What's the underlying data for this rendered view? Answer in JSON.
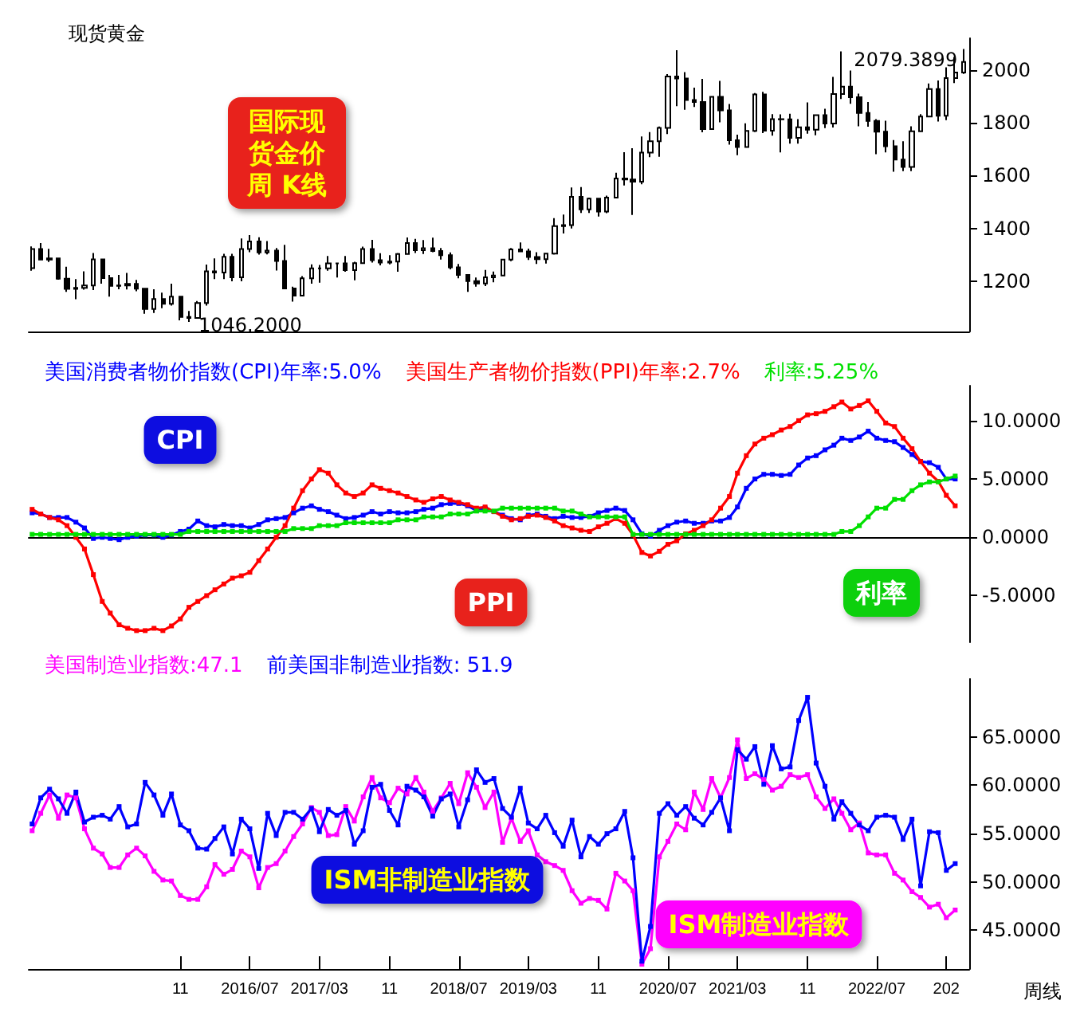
{
  "chart_data": [
    {
      "type": "candlestick",
      "title": "现货黄金",
      "color": "#000000",
      "xlim": [
        "2014-05-20",
        "2023-05-20"
      ],
      "ylim": [
        1010,
        2120
      ],
      "yticks": [
        1200,
        1400,
        1600,
        1800,
        2000
      ],
      "tick_labels": "y",
      "annotations": [
        "国际现货金价周 K线",
        {
          "text": "2079.3899",
          "x": "2023-05",
          "y": 2079.3899
        },
        {
          "text": "1046.2000",
          "x": "2015-12",
          "y": 1046.2
        }
      ],
      "x": [
        "2014-06",
        "2014-07",
        "2014-08",
        "2014-09",
        "2014-10",
        "2014-11",
        "2014-12",
        "2015-01",
        "2015-02",
        "2015-03",
        "2015-04",
        "2015-05",
        "2015-06",
        "2015-07",
        "2015-08",
        "2015-09",
        "2015-10",
        "2015-11",
        "2015-12",
        "2016-01",
        "2016-02",
        "2016-03",
        "2016-04",
        "2016-05",
        "2016-06",
        "2016-07",
        "2016-08",
        "2016-09",
        "2016-10",
        "2016-11",
        "2016-12",
        "2017-01",
        "2017-02",
        "2017-03",
        "2017-04",
        "2017-05",
        "2017-06",
        "2017-07",
        "2017-08",
        "2017-09",
        "2017-10",
        "2017-11",
        "2017-12",
        "2018-01",
        "2018-02",
        "2018-03",
        "2018-04",
        "2018-05",
        "2018-06",
        "2018-07",
        "2018-08",
        "2018-09",
        "2018-10",
        "2018-11",
        "2018-12",
        "2019-01",
        "2019-02",
        "2019-03",
        "2019-04",
        "2019-05",
        "2019-06",
        "2019-07",
        "2019-08",
        "2019-09",
        "2019-10",
        "2019-11",
        "2019-12",
        "2020-01",
        "2020-02",
        "2020-03",
        "2020-04",
        "2020-05",
        "2020-06",
        "2020-07",
        "2020-08",
        "2020-09",
        "2020-10",
        "2020-11",
        "2020-12",
        "2021-01",
        "2021-02",
        "2021-03",
        "2021-04",
        "2021-05",
        "2021-06",
        "2021-07",
        "2021-08",
        "2021-09",
        "2021-10",
        "2021-11",
        "2021-12",
        "2022-01",
        "2022-02",
        "2022-03",
        "2022-04",
        "2022-05",
        "2022-06",
        "2022-07",
        "2022-08",
        "2022-09",
        "2022-10",
        "2022-11",
        "2022-12",
        "2023-01",
        "2023-02",
        "2023-03",
        "2023-04",
        "2023-05"
      ],
      "ohlc": [
        [
          1250,
          1332,
          1240,
          1322
        ],
        [
          1322,
          1345,
          1282,
          1282
        ],
        [
          1282,
          1323,
          1273,
          1287
        ],
        [
          1287,
          1290,
          1206,
          1210
        ],
        [
          1210,
          1255,
          1160,
          1171
        ],
        [
          1171,
          1208,
          1132,
          1175
        ],
        [
          1175,
          1238,
          1168,
          1184
        ],
        [
          1184,
          1307,
          1167,
          1283
        ],
        [
          1283,
          1284,
          1191,
          1212
        ],
        [
          1212,
          1224,
          1142,
          1183
        ],
        [
          1183,
          1224,
          1170,
          1184
        ],
        [
          1184,
          1232,
          1169,
          1190
        ],
        [
          1190,
          1205,
          1162,
          1172
        ],
        [
          1172,
          1174,
          1077,
          1095
        ],
        [
          1095,
          1170,
          1080,
          1133
        ],
        [
          1133,
          1157,
          1098,
          1115
        ],
        [
          1115,
          1191,
          1108,
          1142
        ],
        [
          1142,
          1143,
          1052,
          1065
        ],
        [
          1065,
          1088,
          1046.2,
          1061
        ],
        [
          1061,
          1125,
          1061,
          1118
        ],
        [
          1118,
          1263,
          1108,
          1238
        ],
        [
          1238,
          1287,
          1208,
          1233
        ],
        [
          1233,
          1304,
          1208,
          1293
        ],
        [
          1293,
          1304,
          1200,
          1215
        ],
        [
          1215,
          1362,
          1200,
          1322
        ],
        [
          1322,
          1375,
          1310,
          1351
        ],
        [
          1351,
          1367,
          1301,
          1309
        ],
        [
          1309,
          1352,
          1302,
          1316
        ],
        [
          1316,
          1326,
          1241,
          1277
        ],
        [
          1277,
          1338,
          1171,
          1173
        ],
        [
          1173,
          1180,
          1123,
          1146
        ],
        [
          1146,
          1220,
          1146,
          1211
        ],
        [
          1211,
          1264,
          1191,
          1249
        ],
        [
          1249,
          1262,
          1195,
          1249
        ],
        [
          1249,
          1296,
          1240,
          1268
        ],
        [
          1268,
          1270,
          1214,
          1268
        ],
        [
          1268,
          1296,
          1236,
          1242
        ],
        [
          1242,
          1274,
          1204,
          1269
        ],
        [
          1269,
          1331,
          1267,
          1322
        ],
        [
          1322,
          1357,
          1271,
          1280
        ],
        [
          1280,
          1306,
          1260,
          1271
        ],
        [
          1271,
          1299,
          1264,
          1275
        ],
        [
          1275,
          1307,
          1236,
          1303
        ],
        [
          1303,
          1366,
          1302,
          1345
        ],
        [
          1345,
          1361,
          1307,
          1318
        ],
        [
          1318,
          1356,
          1303,
          1325
        ],
        [
          1325,
          1365,
          1310,
          1315
        ],
        [
          1315,
          1326,
          1282,
          1299
        ],
        [
          1299,
          1309,
          1245,
          1253
        ],
        [
          1253,
          1266,
          1211,
          1224
        ],
        [
          1224,
          1224,
          1160,
          1201
        ],
        [
          1201,
          1214,
          1180,
          1192
        ],
        [
          1192,
          1243,
          1182,
          1215
        ],
        [
          1215,
          1237,
          1196,
          1222
        ],
        [
          1222,
          1285,
          1221,
          1282
        ],
        [
          1282,
          1326,
          1276,
          1321
        ],
        [
          1321,
          1347,
          1311,
          1313
        ],
        [
          1313,
          1324,
          1281,
          1292
        ],
        [
          1292,
          1310,
          1266,
          1284
        ],
        [
          1284,
          1306,
          1267,
          1305
        ],
        [
          1305,
          1439,
          1301,
          1409
        ],
        [
          1409,
          1453,
          1381,
          1413
        ],
        [
          1413,
          1555,
          1400,
          1520
        ],
        [
          1520,
          1557,
          1459,
          1472
        ],
        [
          1472,
          1517,
          1459,
          1513
        ],
        [
          1513,
          1516,
          1445,
          1464
        ],
        [
          1464,
          1524,
          1458,
          1517
        ],
        [
          1517,
          1611,
          1517,
          1589
        ],
        [
          1589,
          1689,
          1563,
          1585
        ],
        [
          1585,
          1704,
          1451,
          1577
        ],
        [
          1577,
          1748,
          1567,
          1687
        ],
        [
          1687,
          1765,
          1670,
          1730
        ],
        [
          1730,
          1786,
          1671,
          1781
        ],
        [
          1781,
          1984,
          1757,
          1975
        ],
        [
          1975,
          2075,
          1863,
          1968
        ],
        [
          1968,
          1992,
          1849,
          1886
        ],
        [
          1886,
          1933,
          1860,
          1879
        ],
        [
          1879,
          1966,
          1764,
          1776
        ],
        [
          1776,
          1900,
          1775,
          1898
        ],
        [
          1898,
          1959,
          1802,
          1847
        ],
        [
          1847,
          1871,
          1717,
          1734
        ],
        [
          1734,
          1755,
          1677,
          1708
        ],
        [
          1708,
          1798,
          1705,
          1769
        ],
        [
          1769,
          1913,
          1765,
          1907
        ],
        [
          1907,
          1917,
          1761,
          1770
        ],
        [
          1770,
          1833,
          1751,
          1814
        ],
        [
          1814,
          1832,
          1688,
          1813
        ],
        [
          1813,
          1834,
          1721,
          1743
        ],
        [
          1743,
          1814,
          1721,
          1783
        ],
        [
          1783,
          1877,
          1759,
          1774
        ],
        [
          1774,
          1831,
          1753,
          1829
        ],
        [
          1829,
          1853,
          1780,
          1797
        ],
        [
          1797,
          1974,
          1782,
          1909
        ],
        [
          1909,
          2070,
          1890,
          1937
        ],
        [
          1937,
          1998,
          1872,
          1897
        ],
        [
          1897,
          1910,
          1787,
          1837
        ],
        [
          1837,
          1879,
          1785,
          1807
        ],
        [
          1807,
          1814,
          1681,
          1766
        ],
        [
          1766,
          1808,
          1688,
          1711
        ],
        [
          1711,
          1735,
          1615,
          1661
        ],
        [
          1661,
          1730,
          1617,
          1633
        ],
        [
          1633,
          1787,
          1617,
          1768
        ],
        [
          1768,
          1833,
          1765,
          1824
        ],
        [
          1824,
          1949,
          1824,
          1928
        ],
        [
          1928,
          1960,
          1805,
          1827
        ],
        [
          1827,
          2010,
          1810,
          1969
        ],
        [
          1969,
          2048,
          1950,
          1990
        ],
        [
          1990,
          2079.3899,
          1985,
          2030
        ]
      ]
    },
    {
      "type": "line",
      "legend": "top left",
      "marker": "square",
      "line_style": "solid",
      "xlim": [
        "2014-05-20",
        "2023-05-20"
      ],
      "ylim": [
        -9,
        13
      ],
      "yticks": [
        {
          "value": -5,
          "label": "-5.0000"
        },
        {
          "value": 0,
          "label": "0.0000"
        },
        {
          "value": 5,
          "label": "5.0000"
        },
        {
          "value": 10,
          "label": "10.0000"
        }
      ],
      "tick_labels": "y",
      "annotations": [
        "CPI",
        "PPI",
        "利率"
      ],
      "x": [
        "2014-06",
        "2014-07",
        "2014-08",
        "2014-09",
        "2014-10",
        "2014-11",
        "2014-12",
        "2015-01",
        "2015-02",
        "2015-03",
        "2015-04",
        "2015-05",
        "2015-06",
        "2015-07",
        "2015-08",
        "2015-09",
        "2015-10",
        "2015-11",
        "2015-12",
        "2016-01",
        "2016-02",
        "2016-03",
        "2016-04",
        "2016-05",
        "2016-06",
        "2016-07",
        "2016-08",
        "2016-09",
        "2016-10",
        "2016-11",
        "2016-12",
        "2017-01",
        "2017-02",
        "2017-03",
        "2017-04",
        "2017-05",
        "2017-06",
        "2017-07",
        "2017-08",
        "2017-09",
        "2017-10",
        "2017-11",
        "2017-12",
        "2018-01",
        "2018-02",
        "2018-03",
        "2018-04",
        "2018-05",
        "2018-06",
        "2018-07",
        "2018-08",
        "2018-09",
        "2018-10",
        "2018-11",
        "2018-12",
        "2019-01",
        "2019-02",
        "2019-03",
        "2019-04",
        "2019-05",
        "2019-06",
        "2019-07",
        "2019-08",
        "2019-09",
        "2019-10",
        "2019-11",
        "2019-12",
        "2020-01",
        "2020-02",
        "2020-03",
        "2020-04",
        "2020-05",
        "2020-06",
        "2020-07",
        "2020-08",
        "2020-09",
        "2020-10",
        "2020-11",
        "2020-12",
        "2021-01",
        "2021-02",
        "2021-03",
        "2021-04",
        "2021-05",
        "2021-06",
        "2021-07",
        "2021-08",
        "2021-09",
        "2021-10",
        "2021-11",
        "2021-12",
        "2022-01",
        "2022-02",
        "2022-03",
        "2022-04",
        "2022-05",
        "2022-06",
        "2022-07",
        "2022-08",
        "2022-09",
        "2022-10",
        "2022-11",
        "2022-12",
        "2023-01",
        "2023-02",
        "2023-03",
        "2023-04"
      ],
      "series": [
        {
          "name": "美国消费者物价指数(CPI)年率:5.0%",
          "color": "#0000ff",
          "values": [
            2.1,
            2.0,
            1.7,
            1.7,
            1.7,
            1.3,
            0.8,
            -0.1,
            0.0,
            -0.1,
            -0.2,
            0.0,
            0.1,
            0.2,
            0.2,
            0.0,
            0.2,
            0.5,
            0.7,
            1.4,
            1.0,
            0.9,
            1.1,
            1.0,
            1.0,
            0.8,
            1.1,
            1.5,
            1.6,
            1.7,
            2.1,
            2.5,
            2.7,
            2.4,
            2.2,
            1.9,
            1.6,
            1.7,
            1.9,
            2.2,
            2.0,
            2.2,
            2.1,
            2.1,
            2.2,
            2.4,
            2.5,
            2.8,
            2.9,
            2.9,
            2.7,
            2.3,
            2.5,
            2.2,
            1.9,
            1.6,
            1.5,
            1.9,
            2.0,
            1.8,
            1.6,
            1.8,
            1.7,
            1.7,
            1.8,
            2.1,
            2.3,
            2.5,
            2.3,
            1.5,
            0.3,
            0.1,
            0.6,
            1.0,
            1.3,
            1.4,
            1.2,
            1.2,
            1.4,
            1.4,
            1.7,
            2.6,
            4.2,
            5.0,
            5.4,
            5.4,
            5.3,
            5.4,
            6.2,
            6.8,
            7.0,
            7.5,
            7.9,
            8.5,
            8.3,
            8.6,
            9.1,
            8.5,
            8.3,
            8.2,
            7.7,
            7.1,
            6.5,
            6.4,
            6.0,
            5.0,
            5.0
          ]
        },
        {
          "name": "美国生产者物价指数(PPI)年率:2.7%",
          "color": "#ff0000",
          "values": [
            2.4,
            2.0,
            1.7,
            1.5,
            1.0,
            0.0,
            -1.0,
            -3.2,
            -5.5,
            -6.5,
            -7.5,
            -7.8,
            -8.0,
            -8.0,
            -7.8,
            -8.0,
            -7.6,
            -7.0,
            -6.0,
            -5.5,
            -5.0,
            -4.5,
            -4.0,
            -3.5,
            -3.3,
            -3.0,
            -2.0,
            -1.0,
            0.0,
            1.0,
            2.5,
            4.0,
            5.0,
            5.8,
            5.5,
            4.5,
            3.8,
            3.5,
            3.8,
            4.5,
            4.2,
            4.0,
            3.8,
            3.5,
            3.2,
            3.0,
            3.3,
            3.5,
            3.2,
            3.0,
            2.8,
            2.5,
            2.6,
            2.2,
            1.8,
            1.5,
            1.6,
            1.8,
            1.9,
            1.7,
            1.4,
            1.0,
            0.8,
            0.6,
            0.5,
            0.9,
            1.2,
            1.6,
            1.2,
            0.2,
            -1.3,
            -1.6,
            -1.2,
            -0.6,
            -0.3,
            0.3,
            0.6,
            1.0,
            1.5,
            2.5,
            3.5,
            5.5,
            7.0,
            8.0,
            8.5,
            8.8,
            9.2,
            9.5,
            10.0,
            10.5,
            10.6,
            10.8,
            11.2,
            11.6,
            11.0,
            11.3,
            11.7,
            10.8,
            9.8,
            9.5,
            8.5,
            7.6,
            6.5,
            5.5,
            4.8,
            3.6,
            2.7
          ]
        },
        {
          "name": "利率:5.25%",
          "color": "#00e000",
          "values": [
            0.25,
            0.25,
            0.25,
            0.25,
            0.25,
            0.25,
            0.25,
            0.25,
            0.25,
            0.25,
            0.25,
            0.25,
            0.25,
            0.25,
            0.25,
            0.25,
            0.25,
            0.25,
            0.5,
            0.5,
            0.5,
            0.5,
            0.5,
            0.5,
            0.5,
            0.5,
            0.5,
            0.5,
            0.5,
            0.5,
            0.75,
            0.75,
            0.75,
            1.0,
            1.0,
            1.0,
            1.25,
            1.25,
            1.25,
            1.25,
            1.25,
            1.25,
            1.5,
            1.5,
            1.5,
            1.75,
            1.75,
            1.75,
            2.0,
            2.0,
            2.0,
            2.25,
            2.25,
            2.25,
            2.5,
            2.5,
            2.5,
            2.5,
            2.5,
            2.5,
            2.5,
            2.25,
            2.25,
            2.0,
            1.75,
            1.75,
            1.75,
            1.75,
            1.75,
            0.25,
            0.25,
            0.25,
            0.25,
            0.25,
            0.25,
            0.25,
            0.25,
            0.25,
            0.25,
            0.25,
            0.25,
            0.25,
            0.25,
            0.25,
            0.25,
            0.25,
            0.25,
            0.25,
            0.25,
            0.25,
            0.25,
            0.25,
            0.25,
            0.5,
            0.5,
            1.0,
            1.75,
            2.5,
            2.5,
            3.25,
            3.25,
            4.0,
            4.5,
            4.75,
            4.75,
            5.0,
            5.25
          ]
        }
      ]
    },
    {
      "type": "line",
      "legend": "top left",
      "marker": "square",
      "line_style": "solid",
      "xlim": [
        "2014-05-20",
        "2023-05-20"
      ],
      "ylim": [
        41,
        71
      ],
      "yticks": [
        {
          "value": 45,
          "label": "45.0000"
        },
        {
          "value": 50,
          "label": "50.0000"
        },
        {
          "value": 55,
          "label": "55.0000"
        },
        {
          "value": 60,
          "label": "60.0000"
        },
        {
          "value": 65,
          "label": "65.0000"
        }
      ],
      "xticks": [
        {
          "value": "2015-11",
          "label": "11"
        },
        {
          "value": "2016-07",
          "label": "2016/07"
        },
        {
          "value": "2017-03",
          "label": "2017/03"
        },
        {
          "value": "2017-11",
          "label": "11"
        },
        {
          "value": "2018-07",
          "label": "2018/07"
        },
        {
          "value": "2019-03",
          "label": "2019/03"
        },
        {
          "value": "2019-11",
          "label": "11"
        },
        {
          "value": "2020-07",
          "label": "2020/07"
        },
        {
          "value": "2021-03",
          "label": "2021/03"
        },
        {
          "value": "2021-11",
          "label": "11"
        },
        {
          "value": "2022-07",
          "label": "2022/07"
        },
        {
          "value": "2023-03",
          "label": "202"
        }
      ],
      "annotations": [
        "ISM非制造业指数",
        "ISM制造业指数",
        "周线"
      ],
      "x": [
        "2014-06",
        "2014-07",
        "2014-08",
        "2014-09",
        "2014-10",
        "2014-11",
        "2014-12",
        "2015-01",
        "2015-02",
        "2015-03",
        "2015-04",
        "2015-05",
        "2015-06",
        "2015-07",
        "2015-08",
        "2015-09",
        "2015-10",
        "2015-11",
        "2015-12",
        "2016-01",
        "2016-02",
        "2016-03",
        "2016-04",
        "2016-05",
        "2016-06",
        "2016-07",
        "2016-08",
        "2016-09",
        "2016-10",
        "2016-11",
        "2016-12",
        "2017-01",
        "2017-02",
        "2017-03",
        "2017-04",
        "2017-05",
        "2017-06",
        "2017-07",
        "2017-08",
        "2017-09",
        "2017-10",
        "2017-11",
        "2017-12",
        "2018-01",
        "2018-02",
        "2018-03",
        "2018-04",
        "2018-05",
        "2018-06",
        "2018-07",
        "2018-08",
        "2018-09",
        "2018-10",
        "2018-11",
        "2018-12",
        "2019-01",
        "2019-02",
        "2019-03",
        "2019-04",
        "2019-05",
        "2019-06",
        "2019-07",
        "2019-08",
        "2019-09",
        "2019-10",
        "2019-11",
        "2019-12",
        "2020-01",
        "2020-02",
        "2020-03",
        "2020-04",
        "2020-05",
        "2020-06",
        "2020-07",
        "2020-08",
        "2020-09",
        "2020-10",
        "2020-11",
        "2020-12",
        "2021-01",
        "2021-02",
        "2021-03",
        "2021-04",
        "2021-05",
        "2021-06",
        "2021-07",
        "2021-08",
        "2021-09",
        "2021-10",
        "2021-11",
        "2021-12",
        "2022-01",
        "2022-02",
        "2022-03",
        "2022-04",
        "2022-05",
        "2022-06",
        "2022-07",
        "2022-08",
        "2022-09",
        "2022-10",
        "2022-11",
        "2022-12",
        "2023-01",
        "2023-02",
        "2023-03",
        "2023-04"
      ],
      "series": [
        {
          "name": "美国制造业指数:47.1",
          "color": "#ff00ff",
          "values": [
            55.3,
            57.1,
            59.0,
            56.6,
            59.0,
            58.7,
            55.5,
            53.5,
            52.9,
            51.5,
            51.5,
            52.8,
            53.5,
            52.7,
            51.1,
            50.2,
            50.1,
            48.6,
            48.2,
            48.2,
            49.5,
            51.8,
            50.8,
            51.3,
            53.2,
            52.6,
            49.4,
            51.5,
            51.9,
            53.2,
            54.7,
            56.0,
            57.7,
            57.2,
            54.8,
            54.9,
            57.8,
            56.3,
            58.8,
            60.8,
            58.7,
            58.2,
            59.7,
            59.1,
            60.8,
            59.3,
            57.3,
            58.7,
            60.2,
            58.1,
            61.3,
            59.8,
            57.7,
            59.3,
            54.1,
            56.6,
            54.2,
            55.3,
            52.8,
            52.1,
            51.7,
            51.2,
            49.1,
            47.8,
            48.3,
            48.1,
            47.2,
            50.9,
            50.1,
            49.1,
            41.5,
            43.1,
            52.6,
            54.2,
            56.0,
            55.4,
            59.3,
            57.5,
            60.7,
            58.7,
            60.8,
            64.7,
            60.7,
            61.2,
            60.6,
            59.5,
            59.9,
            61.1,
            60.8,
            61.1,
            58.8,
            57.6,
            58.6,
            57.1,
            55.4,
            56.1,
            53.0,
            52.8,
            52.8,
            50.9,
            50.2,
            49.0,
            48.4,
            47.4,
            47.7,
            46.3,
            47.1
          ]
        },
        {
          "name": "前美国非制造业指数: 51.9",
          "color": "#0000ff",
          "values": [
            56.0,
            58.7,
            59.6,
            58.6,
            57.1,
            59.3,
            56.2,
            56.7,
            56.9,
            56.5,
            57.8,
            55.7,
            56.0,
            60.3,
            59.0,
            56.9,
            59.1,
            55.9,
            55.3,
            53.5,
            53.4,
            54.5,
            55.7,
            52.9,
            56.5,
            55.5,
            51.4,
            57.1,
            54.8,
            57.2,
            57.2,
            56.5,
            57.6,
            55.2,
            57.5,
            56.9,
            57.4,
            53.9,
            55.3,
            59.8,
            60.1,
            57.4,
            55.9,
            59.9,
            59.5,
            58.8,
            56.8,
            58.6,
            59.1,
            55.7,
            58.5,
            61.6,
            60.3,
            60.7,
            57.6,
            56.7,
            59.7,
            56.1,
            55.5,
            56.9,
            55.1,
            53.7,
            56.4,
            52.6,
            54.7,
            53.9,
            55.0,
            55.5,
            57.3,
            52.5,
            41.8,
            45.4,
            57.1,
            58.1,
            56.9,
            57.8,
            56.6,
            55.9,
            57.2,
            58.7,
            55.3,
            63.7,
            62.7,
            64.0,
            60.1,
            64.1,
            61.7,
            61.9,
            66.7,
            69.1,
            62.3,
            59.9,
            56.5,
            58.3,
            57.1,
            55.9,
            55.3,
            56.7,
            56.9,
            56.7,
            54.4,
            56.5,
            49.6,
            55.2,
            55.1,
            51.2,
            51.9
          ]
        }
      ]
    }
  ]
}
